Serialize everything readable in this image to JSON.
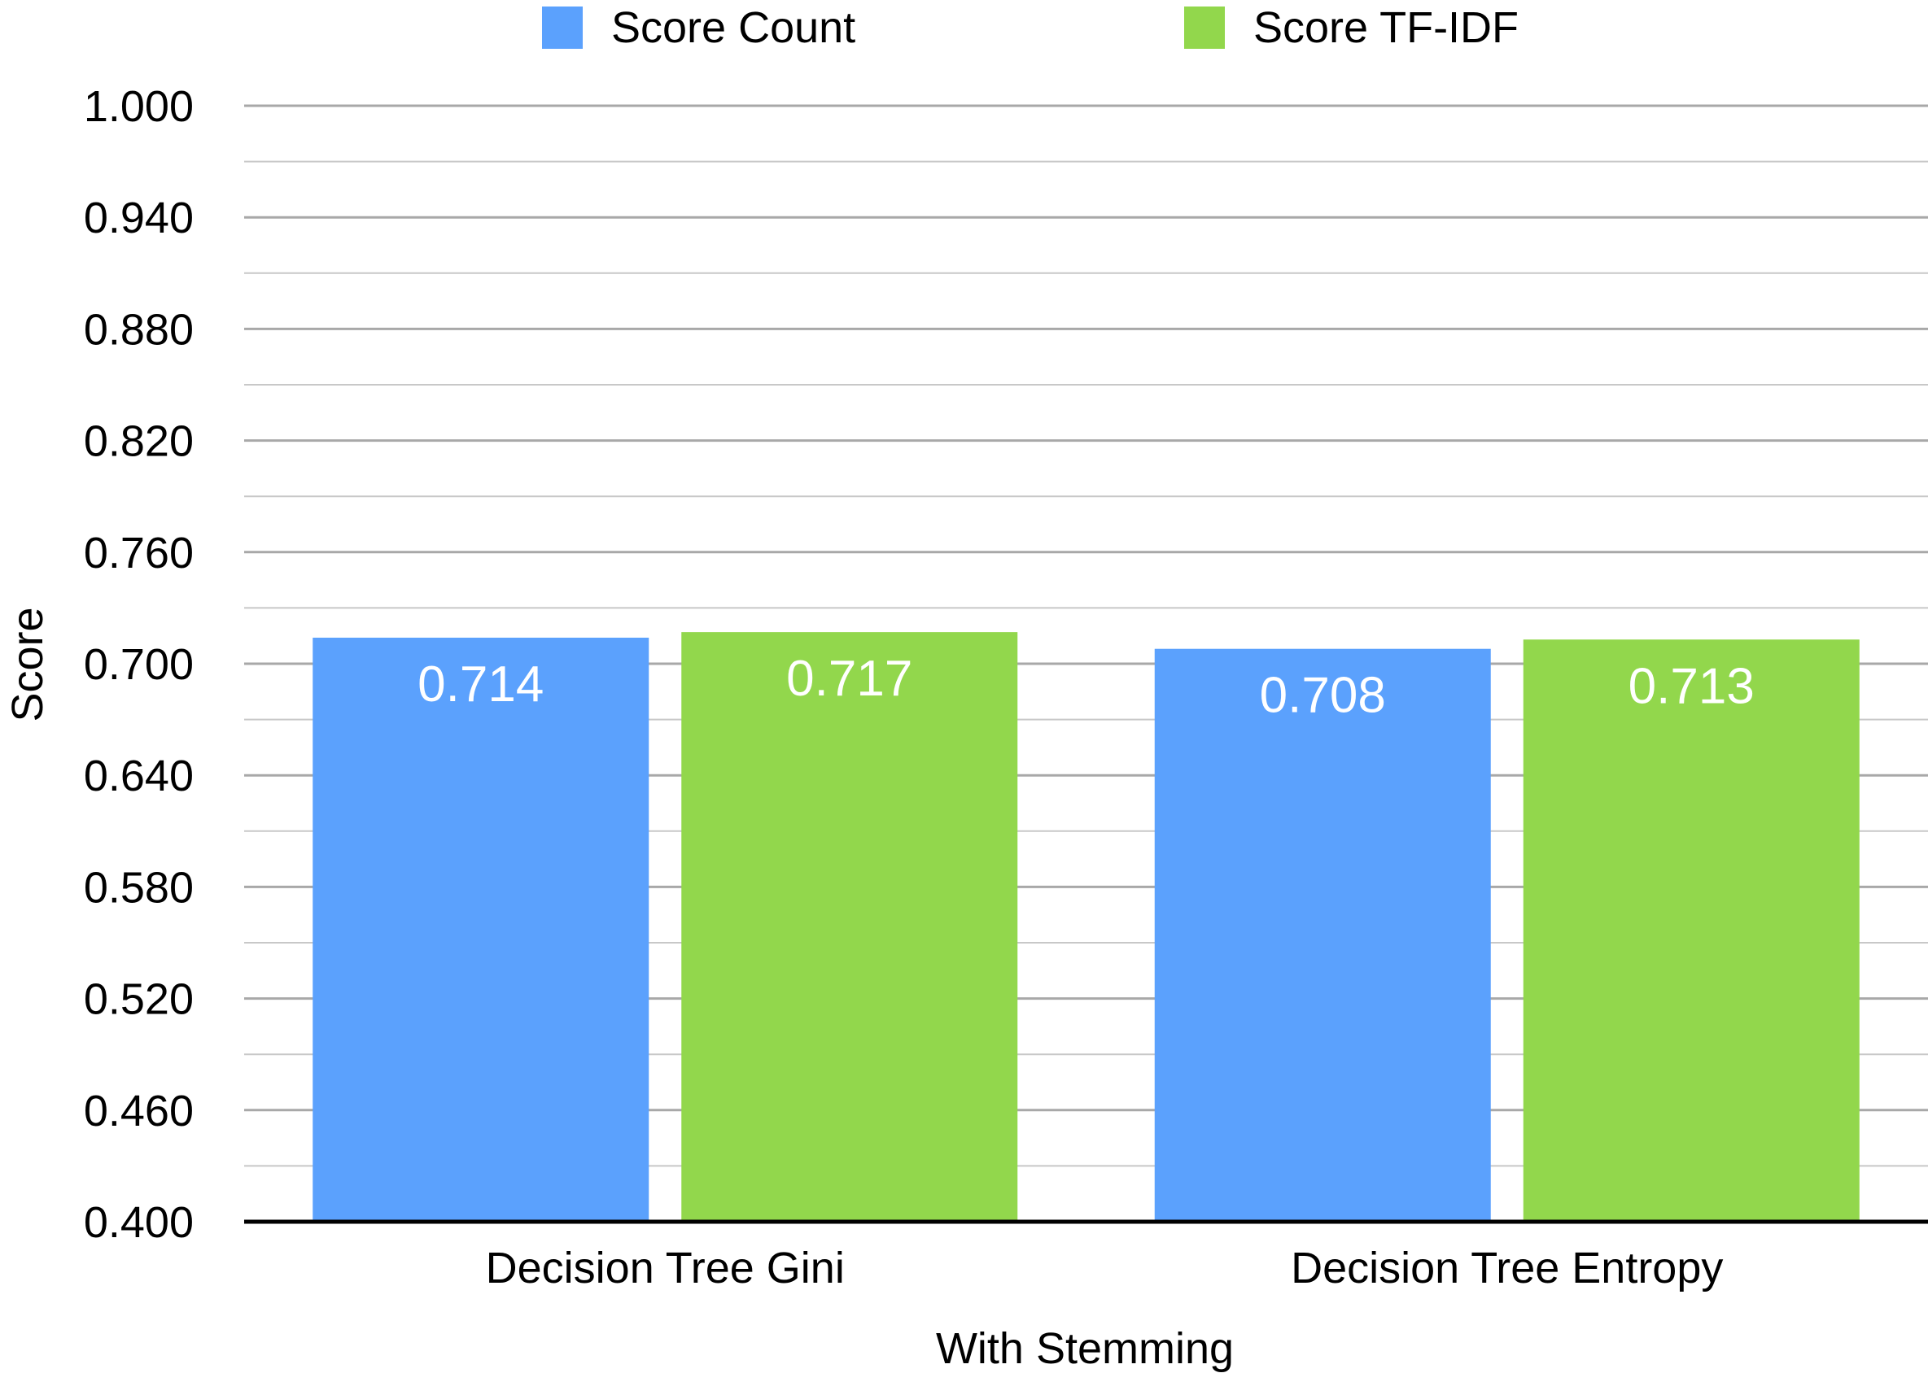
{
  "chart_data": {
    "type": "bar",
    "categories": [
      "Decision Tree Gini",
      "Decision Tree Entropy"
    ],
    "series": [
      {
        "name": "Score Count",
        "values": [
          0.714,
          0.708
        ],
        "labels": [
          "0.714",
          "0.708"
        ],
        "color": "#5ba1fd"
      },
      {
        "name": "Score TF-IDF",
        "values": [
          0.717,
          0.713
        ],
        "labels": [
          "0.717",
          "0.713"
        ],
        "color": "#92d74c"
      }
    ],
    "xlabel": "With Stemming",
    "ylabel": "Score",
    "ylim": [
      0.4,
      1.0
    ],
    "yticks": [
      1.0,
      0.94,
      0.88,
      0.82,
      0.76,
      0.7,
      0.64,
      0.58,
      0.52,
      0.46,
      0.4
    ],
    "ytick_labels": [
      "1.000",
      "0.940",
      "0.880",
      "0.820",
      "0.760",
      "0.700",
      "0.640",
      "0.580",
      "0.520",
      "0.460",
      "0.400"
    ],
    "minor_gridlines": true,
    "grid": true,
    "legend_position": "top-center"
  }
}
